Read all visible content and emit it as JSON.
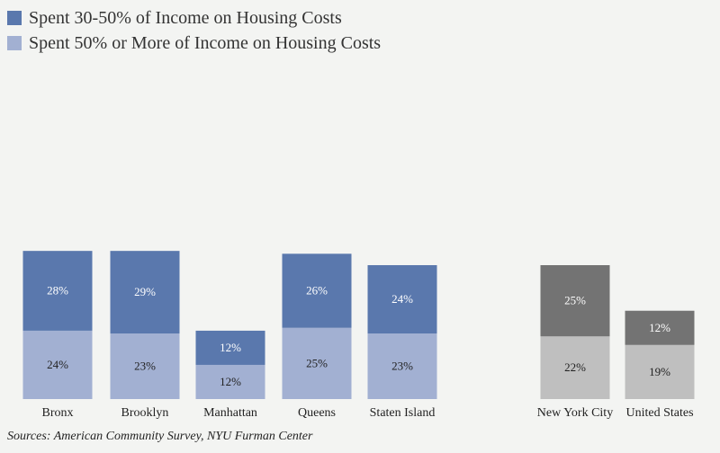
{
  "chart_data": {
    "type": "bar",
    "stacked": true,
    "title": "",
    "xlabel": "",
    "ylabel": "",
    "ylim": [
      0,
      55
    ],
    "grid": false,
    "legend_position": "top-left",
    "categories": [
      "Bronx",
      "Brooklyn",
      "Manhattan",
      "Queens",
      "Staten Island",
      "New York City",
      "United States"
    ],
    "series": [
      {
        "name": "Spent 50% or More of Income on Housing Costs",
        "values": [
          24,
          23,
          12,
          25,
          23,
          22,
          19
        ],
        "value_labels": [
          "24%",
          "23%",
          "12%",
          "25%",
          "23%",
          "22%",
          "19%"
        ],
        "color_boroughs": "#a2b0d2",
        "color_totals": "#bfbfbf"
      },
      {
        "name": "Spent 30-50% of Income on Housing Costs",
        "values": [
          28,
          29,
          12,
          26,
          24,
          25,
          12
        ],
        "value_labels": [
          "28%",
          "29%",
          "12%",
          "26%",
          "24%",
          "25%",
          "12%"
        ],
        "color_boroughs": "#5a78ad",
        "color_totals": "#737373"
      }
    ]
  },
  "legend": {
    "items": [
      {
        "label": "Spent 30-50% of Income on Housing Costs",
        "color": "#5a78ad"
      },
      {
        "label": "Spent 50% or More of Income on Housing Costs",
        "color": "#a2b0d2"
      }
    ]
  },
  "source": "Sources: American Community Survey, NYU Furman Center",
  "colors": {
    "background": "#f3f4f2",
    "label_on_dark": "#ffffff",
    "label_on_light": "#222222"
  }
}
